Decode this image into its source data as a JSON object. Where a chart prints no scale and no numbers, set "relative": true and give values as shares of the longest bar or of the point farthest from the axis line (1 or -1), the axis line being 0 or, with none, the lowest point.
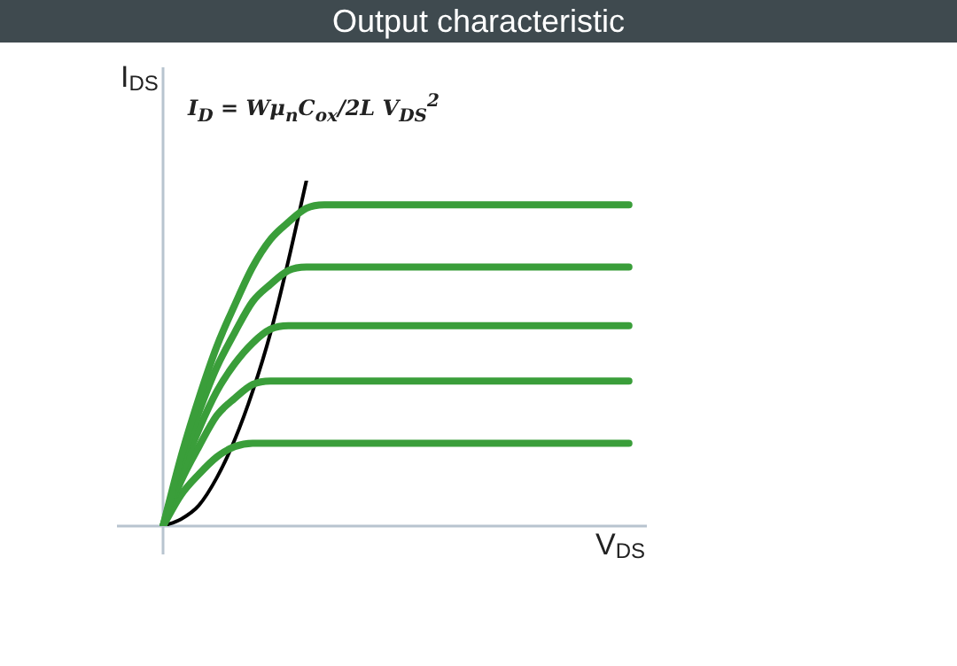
{
  "chart_data": {
    "type": "line",
    "title": "Output characteristic",
    "xlabel": "V$_{DS}$",
    "ylabel": "I$_{DS}$",
    "relative": true,
    "annotations": [
      "I$_{D}$ = Wμ$_{n}$C$_{ox}$/2L V$_{DS}$$^{2}$"
    ],
    "categories": [
      null,
      null,
      null,
      null,
      null,
      null,
      null,
      null,
      null,
      null,
      null,
      null,
      null,
      null,
      null,
      null,
      null,
      null,
      null,
      null,
      null,
      null,
      null,
      null,
      null,
      null,
      null,
      null
    ],
    "series": [
      {
        "color": "#3a9e3a",
        "values": [
          0,
          0.2,
          0.37,
          0.52,
          0.64,
          0.75,
          0.83,
          0.88,
          0.92,
          0.93,
          0.93,
          0.93,
          0.93,
          0.93,
          0.93,
          0.93,
          0.93,
          0.93,
          0.93,
          0.93,
          0.93,
          0.93,
          0.93,
          0.93,
          0.93,
          0.93,
          0.93,
          null
        ]
      },
      {
        "color": "#3a9e3a",
        "values": [
          0,
          0.18,
          0.33,
          0.46,
          0.56,
          0.65,
          0.7,
          0.74,
          0.75,
          0.75,
          0.75,
          0.75,
          0.75,
          0.75,
          0.75,
          0.75,
          0.75,
          0.75,
          0.75,
          0.75,
          0.75,
          0.75,
          0.75,
          0.75,
          0.75,
          0.75,
          0.75,
          null
        ]
      },
      {
        "color": "#3a9e3a",
        "values": [
          0,
          0.15,
          0.28,
          0.39,
          0.47,
          0.53,
          0.57,
          0.58,
          0.58,
          0.58,
          0.58,
          0.58,
          0.58,
          0.58,
          0.58,
          0.58,
          0.58,
          0.58,
          0.58,
          0.58,
          0.58,
          0.58,
          0.58,
          0.58,
          0.58,
          0.58,
          0.58,
          null
        ]
      },
      {
        "color": "#3a9e3a",
        "values": [
          0,
          0.13,
          0.23,
          0.32,
          0.37,
          0.41,
          0.42,
          0.42,
          0.42,
          0.42,
          0.42,
          0.42,
          0.42,
          0.42,
          0.42,
          0.42,
          0.42,
          0.42,
          0.42,
          0.42,
          0.42,
          0.42,
          0.42,
          0.42,
          0.42,
          0.42,
          0.42,
          null
        ]
      },
      {
        "color": "#3a9e3a",
        "values": [
          0,
          0.09,
          0.15,
          0.2,
          0.23,
          0.24,
          0.24,
          0.24,
          0.24,
          0.24,
          0.24,
          0.24,
          0.24,
          0.24,
          0.24,
          0.24,
          0.24,
          0.24,
          0.24,
          0.24,
          0.24,
          0.24,
          0.24,
          0.24,
          0.24,
          0.24,
          0.24,
          null
        ]
      },
      {
        "color": "#000000",
        "values": [
          0,
          0.02,
          0.06,
          0.14,
          0.25,
          0.39,
          0.56,
          0.77,
          1,
          null,
          null,
          null,
          null,
          null,
          null,
          null,
          null,
          null,
          null,
          null,
          null,
          null,
          null,
          null,
          null,
          null,
          null,
          null
        ]
      }
    ]
  }
}
